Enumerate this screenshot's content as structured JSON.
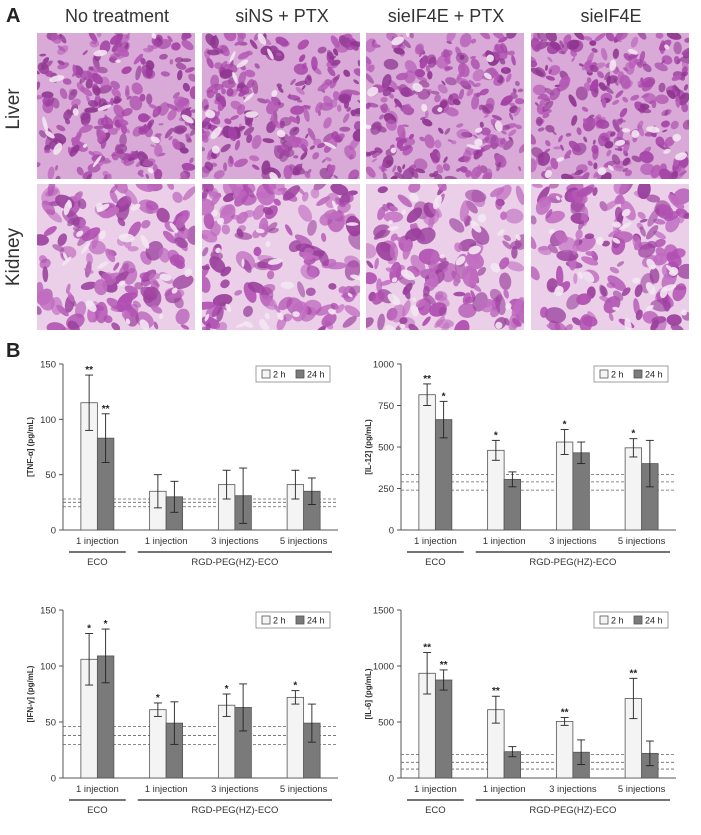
{
  "panel_a": {
    "letter": "A",
    "columns": [
      "No treatment",
      "siNS + PTX",
      "sieIF4E + PTX",
      "sieIF4E"
    ],
    "rows": [
      "Liver",
      "Kidney"
    ]
  },
  "panel_b": {
    "letter": "B"
  },
  "chart_data": [
    {
      "type": "bar",
      "ylabel": "[TNF-α] (pg/mL)",
      "ylim": [
        0,
        150
      ],
      "yticks": [
        0,
        50,
        100,
        150
      ],
      "categories": [
        "1 injection",
        "1 injection",
        "3 injections",
        "5 injections"
      ],
      "groups": [
        {
          "label": "ECO",
          "span": [
            0,
            0
          ]
        },
        {
          "label": "RGD-PEG(HZ)-ECO",
          "span": [
            1,
            3
          ]
        }
      ],
      "series": [
        {
          "name": "2 h",
          "values": [
            115,
            35,
            41,
            41
          ],
          "errors": [
            25,
            15,
            13,
            13
          ],
          "stars": [
            "**",
            "",
            "",
            ""
          ]
        },
        {
          "name": "24 h",
          "values": [
            83,
            30,
            31,
            35
          ],
          "errors": [
            22,
            14,
            25,
            12
          ],
          "stars": [
            "**",
            "",
            "",
            ""
          ]
        }
      ],
      "baselines": [
        28,
        25,
        21
      ],
      "legend": "top-right"
    },
    {
      "type": "bar",
      "ylabel": "[IL-12] (pg/mL)",
      "ylim": [
        0,
        1000
      ],
      "yticks": [
        0,
        250,
        500,
        750,
        1000
      ],
      "categories": [
        "1 injection",
        "1 injection",
        "3 injections",
        "5 injections"
      ],
      "groups": [
        {
          "label": "ECO",
          "span": [
            0,
            0
          ]
        },
        {
          "label": "RGD-PEG(HZ)-ECO",
          "span": [
            1,
            3
          ]
        }
      ],
      "series": [
        {
          "name": "2 h",
          "values": [
            815,
            480,
            530,
            495
          ],
          "errors": [
            65,
            60,
            75,
            55
          ],
          "stars": [
            "**",
            "*",
            "*",
            "*"
          ]
        },
        {
          "name": "24 h",
          "values": [
            665,
            305,
            465,
            400
          ],
          "errors": [
            110,
            45,
            65,
            140
          ],
          "stars": [
            "*",
            "",
            "",
            ""
          ]
        }
      ],
      "baselines": [
        335,
        290,
        240
      ],
      "legend": "top-right"
    },
    {
      "type": "bar",
      "ylabel": "[IFN-γ] (pg/mL)",
      "ylim": [
        0,
        150
      ],
      "yticks": [
        0,
        50,
        100,
        150
      ],
      "categories": [
        "1 injection",
        "1 injection",
        "3 injections",
        "5 injections"
      ],
      "groups": [
        {
          "label": "ECO",
          "span": [
            0,
            0
          ]
        },
        {
          "label": "RGD-PEG(HZ)-ECO",
          "span": [
            1,
            3
          ]
        }
      ],
      "series": [
        {
          "name": "2 h",
          "values": [
            106,
            61,
            65,
            72
          ],
          "errors": [
            23,
            6,
            10,
            6
          ],
          "stars": [
            "*",
            "*",
            "*",
            "*"
          ]
        },
        {
          "name": "24 h",
          "values": [
            109,
            49,
            63,
            49
          ],
          "errors": [
            24,
            19,
            21,
            17
          ],
          "stars": [
            "*",
            "",
            "",
            ""
          ]
        }
      ],
      "baselines": [
        46,
        38,
        30
      ],
      "legend": "top-right"
    },
    {
      "type": "bar",
      "ylabel": "[IL-6] (pg/mL)",
      "ylim": [
        0,
        1500
      ],
      "yticks": [
        0,
        500,
        1000,
        1500
      ],
      "categories": [
        "1 injection",
        "1 injection",
        "3 injections",
        "5 injections"
      ],
      "groups": [
        {
          "label": "ECO",
          "span": [
            0,
            0
          ]
        },
        {
          "label": "RGD-PEG(HZ)-ECO",
          "span": [
            1,
            3
          ]
        }
      ],
      "series": [
        {
          "name": "2 h",
          "values": [
            935,
            610,
            505,
            710
          ],
          "errors": [
            185,
            120,
            35,
            180
          ],
          "stars": [
            "**",
            "**",
            "**",
            "**"
          ]
        },
        {
          "name": "24 h",
          "values": [
            875,
            235,
            230,
            220
          ],
          "errors": [
            90,
            45,
            110,
            110
          ],
          "stars": [
            "**",
            "",
            "",
            ""
          ]
        }
      ],
      "baselines": [
        210,
        140,
        80
      ],
      "legend": "top-right"
    }
  ],
  "colors": {
    "bar_2h": "#f4f4f4",
    "bar_24h": "#7a7a7a",
    "tissue_bg": "#e9c8e6",
    "tissue_dark": "#a442a6"
  }
}
